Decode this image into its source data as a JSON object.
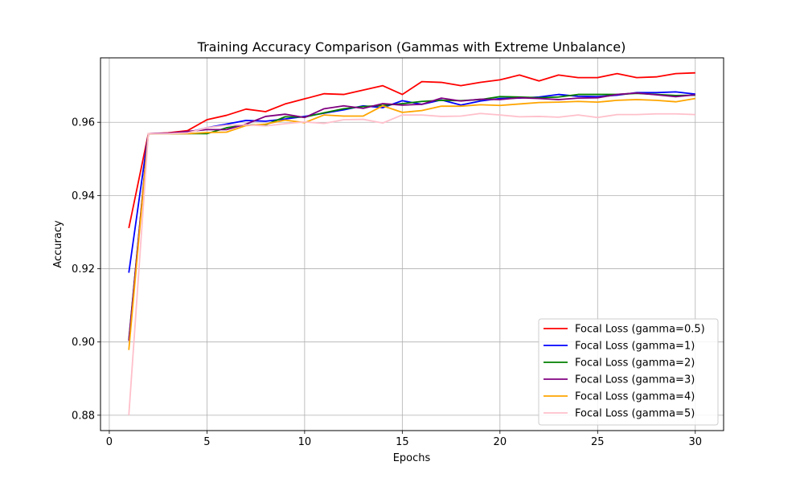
{
  "chart_data": {
    "type": "line",
    "title": "Training Accuracy Comparison (Gammas with Extreme Unbalance)",
    "xlabel": "Epochs",
    "ylabel": "Accuracy",
    "xlim": [
      -0.45,
      31.45
    ],
    "ylim": [
      0.8758,
      0.9776
    ],
    "xticks": [
      0,
      5,
      10,
      15,
      20,
      25,
      30
    ],
    "yticks": [
      0.88,
      0.9,
      0.92,
      0.94,
      0.96
    ],
    "grid": true,
    "legend": "lower-right",
    "x": [
      1,
      2,
      3,
      4,
      5,
      6,
      7,
      8,
      9,
      10,
      11,
      12,
      13,
      14,
      15,
      16,
      17,
      18,
      19,
      20,
      21,
      22,
      23,
      24,
      25,
      26,
      27,
      28,
      29,
      30
    ],
    "series": [
      {
        "name": "Focal Loss (gamma=0.5)",
        "color": "#ff0000",
        "values": [
          0.9311,
          0.9569,
          0.9571,
          0.9577,
          0.9607,
          0.9619,
          0.9636,
          0.9629,
          0.965,
          0.9664,
          0.9678,
          0.9676,
          0.9688,
          0.97,
          0.9676,
          0.9711,
          0.9709,
          0.97,
          0.9709,
          0.9716,
          0.9729,
          0.9713,
          0.9729,
          0.9722,
          0.9722,
          0.9733,
          0.9722,
          0.9724,
          0.9733,
          0.9735
        ]
      },
      {
        "name": "Focal Loss (gamma=1)",
        "color": "#0000ff",
        "values": [
          0.9189,
          0.9569,
          0.957,
          0.9572,
          0.9585,
          0.9595,
          0.9605,
          0.9603,
          0.9609,
          0.9616,
          0.9625,
          0.9634,
          0.9645,
          0.964,
          0.9659,
          0.9649,
          0.9661,
          0.9647,
          0.9658,
          0.9665,
          0.9666,
          0.9669,
          0.9676,
          0.9671,
          0.967,
          0.9674,
          0.9681,
          0.9681,
          0.9683,
          0.9677
        ]
      },
      {
        "name": "Focal Loss (gamma=2)",
        "color": "#008000",
        "values": [
          0.9005,
          0.9569,
          0.9569,
          0.9569,
          0.9569,
          0.9585,
          0.9593,
          0.9593,
          0.9615,
          0.9614,
          0.9626,
          0.9637,
          0.9643,
          0.9646,
          0.9651,
          0.9657,
          0.966,
          0.9659,
          0.9662,
          0.967,
          0.9669,
          0.9667,
          0.9669,
          0.9676,
          0.9676,
          0.9676,
          0.9679,
          0.9676,
          0.9673,
          0.9674
        ]
      },
      {
        "name": "Focal Loss (gamma=3)",
        "color": "#800080",
        "values": [
          0.9003,
          0.9569,
          0.957,
          0.9575,
          0.958,
          0.958,
          0.9595,
          0.9616,
          0.9622,
          0.9613,
          0.9637,
          0.9645,
          0.9638,
          0.9651,
          0.9647,
          0.9649,
          0.9666,
          0.9658,
          0.9663,
          0.9662,
          0.9667,
          0.9665,
          0.9662,
          0.9666,
          0.9667,
          0.9676,
          0.968,
          0.9675,
          0.967,
          0.9675
        ]
      },
      {
        "name": "Focal Loss (gamma=4)",
        "color": "#ffa500",
        "values": [
          0.8978,
          0.9569,
          0.9569,
          0.9569,
          0.9572,
          0.9573,
          0.9591,
          0.9595,
          0.9606,
          0.9599,
          0.962,
          0.9617,
          0.9617,
          0.9645,
          0.9627,
          0.9632,
          0.9644,
          0.9644,
          0.9648,
          0.9646,
          0.965,
          0.9654,
          0.9655,
          0.9657,
          0.9655,
          0.966,
          0.9662,
          0.966,
          0.9656,
          0.9665
        ]
      },
      {
        "name": "Focal Loss (gamma=5)",
        "color": "#ffc0cb",
        "values": [
          0.88,
          0.9569,
          0.9569,
          0.9571,
          0.9585,
          0.9592,
          0.9593,
          0.959,
          0.9596,
          0.9601,
          0.9597,
          0.9607,
          0.9608,
          0.9598,
          0.962,
          0.962,
          0.9616,
          0.9617,
          0.9624,
          0.962,
          0.9615,
          0.9616,
          0.9614,
          0.962,
          0.9613,
          0.9621,
          0.9621,
          0.9623,
          0.9623,
          0.9621
        ]
      }
    ]
  }
}
